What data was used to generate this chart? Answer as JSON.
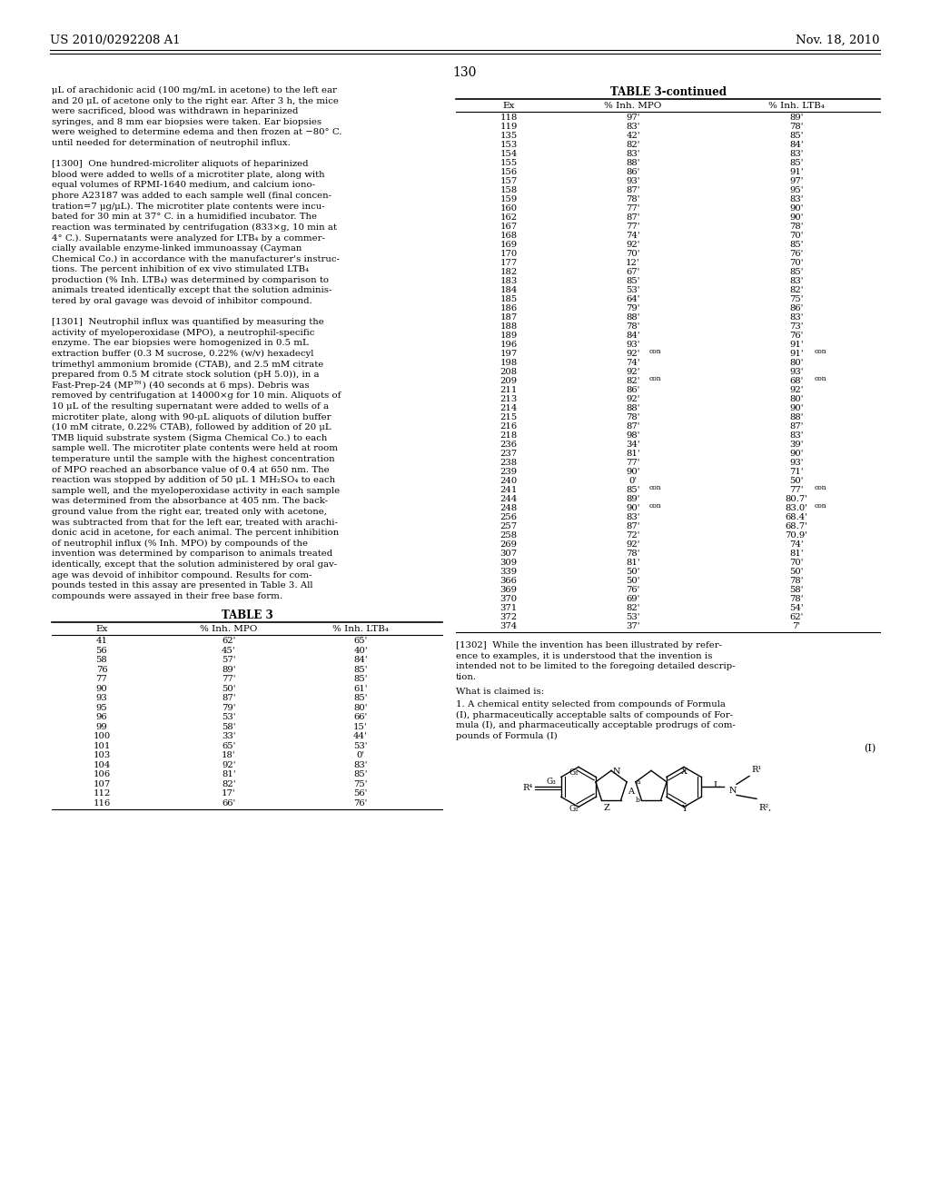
{
  "page_number": "130",
  "header_left": "US 2010/0292208 A1",
  "header_right": "Nov. 18, 2010",
  "left_col_lines": [
    "μL of arachidonic acid (100 mg/mL in acetone) to the left ear",
    "and 20 μL of acetone only to the right ear. After 3 h, the mice",
    "were sacrificed, blood was withdrawn in heparinized",
    "syringes, and 8 mm ear biopsies were taken. Ear biopsies",
    "were weighed to determine edema and then frozen at −80° C.",
    "until needed for determination of neutrophil influx.",
    "",
    "[1300]  One hundred-microliter aliquots of heparinized",
    "blood were added to wells of a microtiter plate, along with",
    "equal volumes of RPMI-1640 medium, and calcium iono-",
    "phore A23187 was added to each sample well (final concen-",
    "tration=7 μg/μL). The microtiter plate contents were incu-",
    "bated for 30 min at 37° C. in a humidified incubator. The",
    "reaction was terminated by centrifugation (833×g, 10 min at",
    "4° C.). Supernatants were analyzed for LTB₄ by a commer-",
    "cially available enzyme-linked immunoassay (Cayman",
    "Chemical Co.) in accordance with the manufacturer's instruc-",
    "tions. The percent inhibition of ex vivo stimulated LTB₄",
    "production (% Inh. LTB₄) was determined by comparison to",
    "animals treated identically except that the solution adminis-",
    "tered by oral gavage was devoid of inhibitor compound.",
    "",
    "[1301]  Neutrophil influx was quantified by measuring the",
    "activity of myeloperoxidase (MPO), a neutrophil-specific",
    "enzyme. The ear biopsies were homogenized in 0.5 mL",
    "extraction buffer (0.3 M sucrose, 0.22% (w/v) hexadecyl",
    "trimethyl ammonium bromide (CTAB), and 2.5 mM citrate",
    "prepared from 0.5 M citrate stock solution (pH 5.0)), in a",
    "Fast-Prep-24 (MP™) (40 seconds at 6 mps). Debris was",
    "removed by centrifugation at 14000×g for 10 min. Aliquots of",
    "10 μL of the resulting supernatant were added to wells of a",
    "microtiter plate, along with 90-μL aliquots of dilution buffer",
    "(10 mM citrate, 0.22% CTAB), followed by addition of 20 μL",
    "TMB liquid substrate system (Sigma Chemical Co.) to each",
    "sample well. The microtiter plate contents were held at room",
    "temperature until the sample with the highest concentration",
    "of MPO reached an absorbance value of 0.4 at 650 nm. The",
    "reaction was stopped by addition of 50 μL 1 MH₂SO₄ to each",
    "sample well, and the myeloperoxidase activity in each sample",
    "was determined from the absorbance at 405 nm. The back-",
    "ground value from the right ear, treated only with acetone,",
    "was subtracted from that for the left ear, treated with arachi-",
    "donic acid in acetone, for each animal. The percent inhibition",
    "of neutrophil influx (% Inh. MPO) by compounds of the",
    "invention was determined by comparison to animals treated",
    "identically, except that the solution administered by oral gav-",
    "age was devoid of inhibitor compound. Results for com-",
    "pounds tested in this assay are presented in Table 3. All",
    "compounds were assayed in their free base form."
  ],
  "table3_title": "TABLE 3",
  "table3_headers": [
    "Ex",
    "% Inh. MPO",
    "% Inh. LTB₄"
  ],
  "table3_data": [
    [
      "41",
      "62'",
      "65'"
    ],
    [
      "56",
      "45'",
      "40'"
    ],
    [
      "58",
      "57'",
      "84'"
    ],
    [
      "76",
      "89'",
      "85'"
    ],
    [
      "77",
      "77'",
      "85'"
    ],
    [
      "90",
      "50'",
      "61'"
    ],
    [
      "93",
      "87'",
      "85'"
    ],
    [
      "95",
      "79'",
      "80'"
    ],
    [
      "96",
      "53'",
      "66'"
    ],
    [
      "99",
      "58'",
      "15'"
    ],
    [
      "100",
      "33'",
      "44'"
    ],
    [
      "101",
      "65'",
      "53'"
    ],
    [
      "103",
      "18'",
      "0'"
    ],
    [
      "104",
      "92'",
      "83'"
    ],
    [
      "106",
      "81'",
      "85'"
    ],
    [
      "107",
      "82'",
      "75'"
    ],
    [
      "112",
      "17'",
      "56'"
    ],
    [
      "116",
      "66'",
      "76'"
    ]
  ],
  "table3cont_title": "TABLE 3-continued",
  "table3cont_headers": [
    "Ex",
    "% Inh. MPO",
    "% Inh. LTB₄"
  ],
  "table3cont_data": [
    [
      "118",
      "97'",
      "89'"
    ],
    [
      "119",
      "83'",
      "78'"
    ],
    [
      "135",
      "42'",
      "85'"
    ],
    [
      "153",
      "82'",
      "84'"
    ],
    [
      "154",
      "83'",
      "83'"
    ],
    [
      "155",
      "88'",
      "85'"
    ],
    [
      "156",
      "86'",
      "91'"
    ],
    [
      "157",
      "93'",
      "97'"
    ],
    [
      "158",
      "87'",
      "95'"
    ],
    [
      "159",
      "78'",
      "83'"
    ],
    [
      "160",
      "77'",
      "90'"
    ],
    [
      "162",
      "87'",
      "90'"
    ],
    [
      "167",
      "77'",
      "78'"
    ],
    [
      "168",
      "74'",
      "70'"
    ],
    [
      "169",
      "92'",
      "85'"
    ],
    [
      "170",
      "70'",
      "76'"
    ],
    [
      "177",
      "12'",
      "70'"
    ],
    [
      "182",
      "67'",
      "85'"
    ],
    [
      "183",
      "85'",
      "83'"
    ],
    [
      "184",
      "53'",
      "82'"
    ],
    [
      "185",
      "64'",
      "75'"
    ],
    [
      "186",
      "79'",
      "86'"
    ],
    [
      "187",
      "88'",
      "83'"
    ],
    [
      "188",
      "78'",
      "73'"
    ],
    [
      "189",
      "84'",
      "76'"
    ],
    [
      "196",
      "93'",
      "91'"
    ],
    [
      "197",
      "92'",
      "91'",
      "con"
    ],
    [
      "198",
      "74'",
      "80'"
    ],
    [
      "208",
      "92'",
      "93'"
    ],
    [
      "209",
      "82'",
      "68'",
      "con"
    ],
    [
      "211",
      "86'",
      "92'"
    ],
    [
      "213",
      "92'",
      "80'"
    ],
    [
      "214",
      "88'",
      "90'"
    ],
    [
      "215",
      "78'",
      "88'"
    ],
    [
      "216",
      "87'",
      "87'"
    ],
    [
      "218",
      "98'",
      "83'"
    ],
    [
      "236",
      "34'",
      "39'"
    ],
    [
      "237",
      "81'",
      "90'"
    ],
    [
      "238",
      "77'",
      "93'"
    ],
    [
      "239",
      "90'",
      "71'"
    ],
    [
      "240",
      "0'",
      "50'"
    ],
    [
      "241",
      "85'",
      "77'",
      "con"
    ],
    [
      "244",
      "89'",
      "80.7'"
    ],
    [
      "248",
      "90'",
      "83.0'",
      "con"
    ],
    [
      "256",
      "83'",
      "68.4'"
    ],
    [
      "257",
      "87'",
      "68.7'"
    ],
    [
      "258",
      "72'",
      "70.9'"
    ],
    [
      "269",
      "92'",
      "74'"
    ],
    [
      "307",
      "78'",
      "81'"
    ],
    [
      "309",
      "81'",
      "70'"
    ],
    [
      "339",
      "50'",
      "50'"
    ],
    [
      "366",
      "50'",
      "78'"
    ],
    [
      "369",
      "76'",
      "58'"
    ],
    [
      "370",
      "69'",
      "78'"
    ],
    [
      "371",
      "82'",
      "54'"
    ],
    [
      "372",
      "53'",
      "62'"
    ],
    [
      "374",
      "37'",
      "7'"
    ]
  ],
  "p1302_lines": [
    "[1302]  While the invention has been illustrated by refer-",
    "ence to examples, it is understood that the invention is",
    "intended not to be limited to the foregoing detailed descrip-",
    "tion."
  ],
  "claim_header": "What is claimed is:",
  "claim1_lines": [
    "1. A chemical entity selected from compounds of Formula",
    "(I), pharmaceutically acceptable salts of compounds of For-",
    "mula (I), and pharmaceutically acceptable prodrugs of com-",
    "pounds of Formula (I)"
  ],
  "formula_label": "(I)"
}
